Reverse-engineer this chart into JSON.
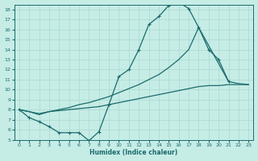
{
  "xlabel": "Humidex (Indice chaleur)",
  "xlim": [
    -0.5,
    23.5
  ],
  "ylim": [
    5,
    18.5
  ],
  "yticks": [
    5,
    6,
    7,
    8,
    9,
    10,
    11,
    12,
    13,
    14,
    15,
    16,
    17,
    18
  ],
  "xticks": [
    0,
    1,
    2,
    3,
    4,
    5,
    6,
    7,
    8,
    9,
    10,
    11,
    12,
    13,
    14,
    15,
    16,
    17,
    18,
    19,
    20,
    21,
    22,
    23
  ],
  "background_color": "#c6ece6",
  "line_color": "#1a6b6b",
  "grid_color": "#a8d8d0",
  "line1_x": [
    0,
    1,
    2,
    3,
    4,
    5,
    6,
    7,
    8,
    9,
    10,
    11,
    12,
    13,
    14,
    15,
    16,
    17,
    18,
    19,
    20,
    21
  ],
  "line1_y": [
    8.0,
    7.2,
    6.8,
    6.3,
    5.7,
    5.7,
    5.7,
    4.9,
    5.8,
    8.5,
    11.3,
    12.0,
    14.0,
    16.5,
    17.3,
    18.4,
    18.7,
    18.1,
    16.2,
    14.0,
    13.0,
    10.8
  ],
  "line2_x": [
    0,
    1,
    2,
    3,
    4,
    5,
    6,
    7,
    8,
    9,
    10,
    11,
    12,
    13,
    14,
    15,
    16,
    17,
    18,
    21,
    22,
    23
  ],
  "line2_y": [
    8.0,
    7.8,
    7.5,
    7.8,
    8.0,
    8.2,
    8.5,
    8.7,
    9.0,
    9.3,
    9.7,
    10.1,
    10.5,
    11.0,
    11.5,
    12.2,
    13.0,
    14.0,
    16.2,
    10.8,
    10.6,
    10.5
  ],
  "line3_x": [
    0,
    1,
    2,
    3,
    4,
    5,
    6,
    7,
    8,
    9,
    10,
    11,
    12,
    13,
    14,
    15,
    16,
    17,
    18,
    19,
    20,
    21,
    22,
    23
  ],
  "line3_y": [
    8.0,
    7.8,
    7.6,
    7.8,
    7.9,
    8.0,
    8.1,
    8.2,
    8.3,
    8.5,
    8.7,
    8.9,
    9.1,
    9.3,
    9.5,
    9.7,
    9.9,
    10.1,
    10.3,
    10.4,
    10.4,
    10.5,
    10.5,
    10.5
  ]
}
